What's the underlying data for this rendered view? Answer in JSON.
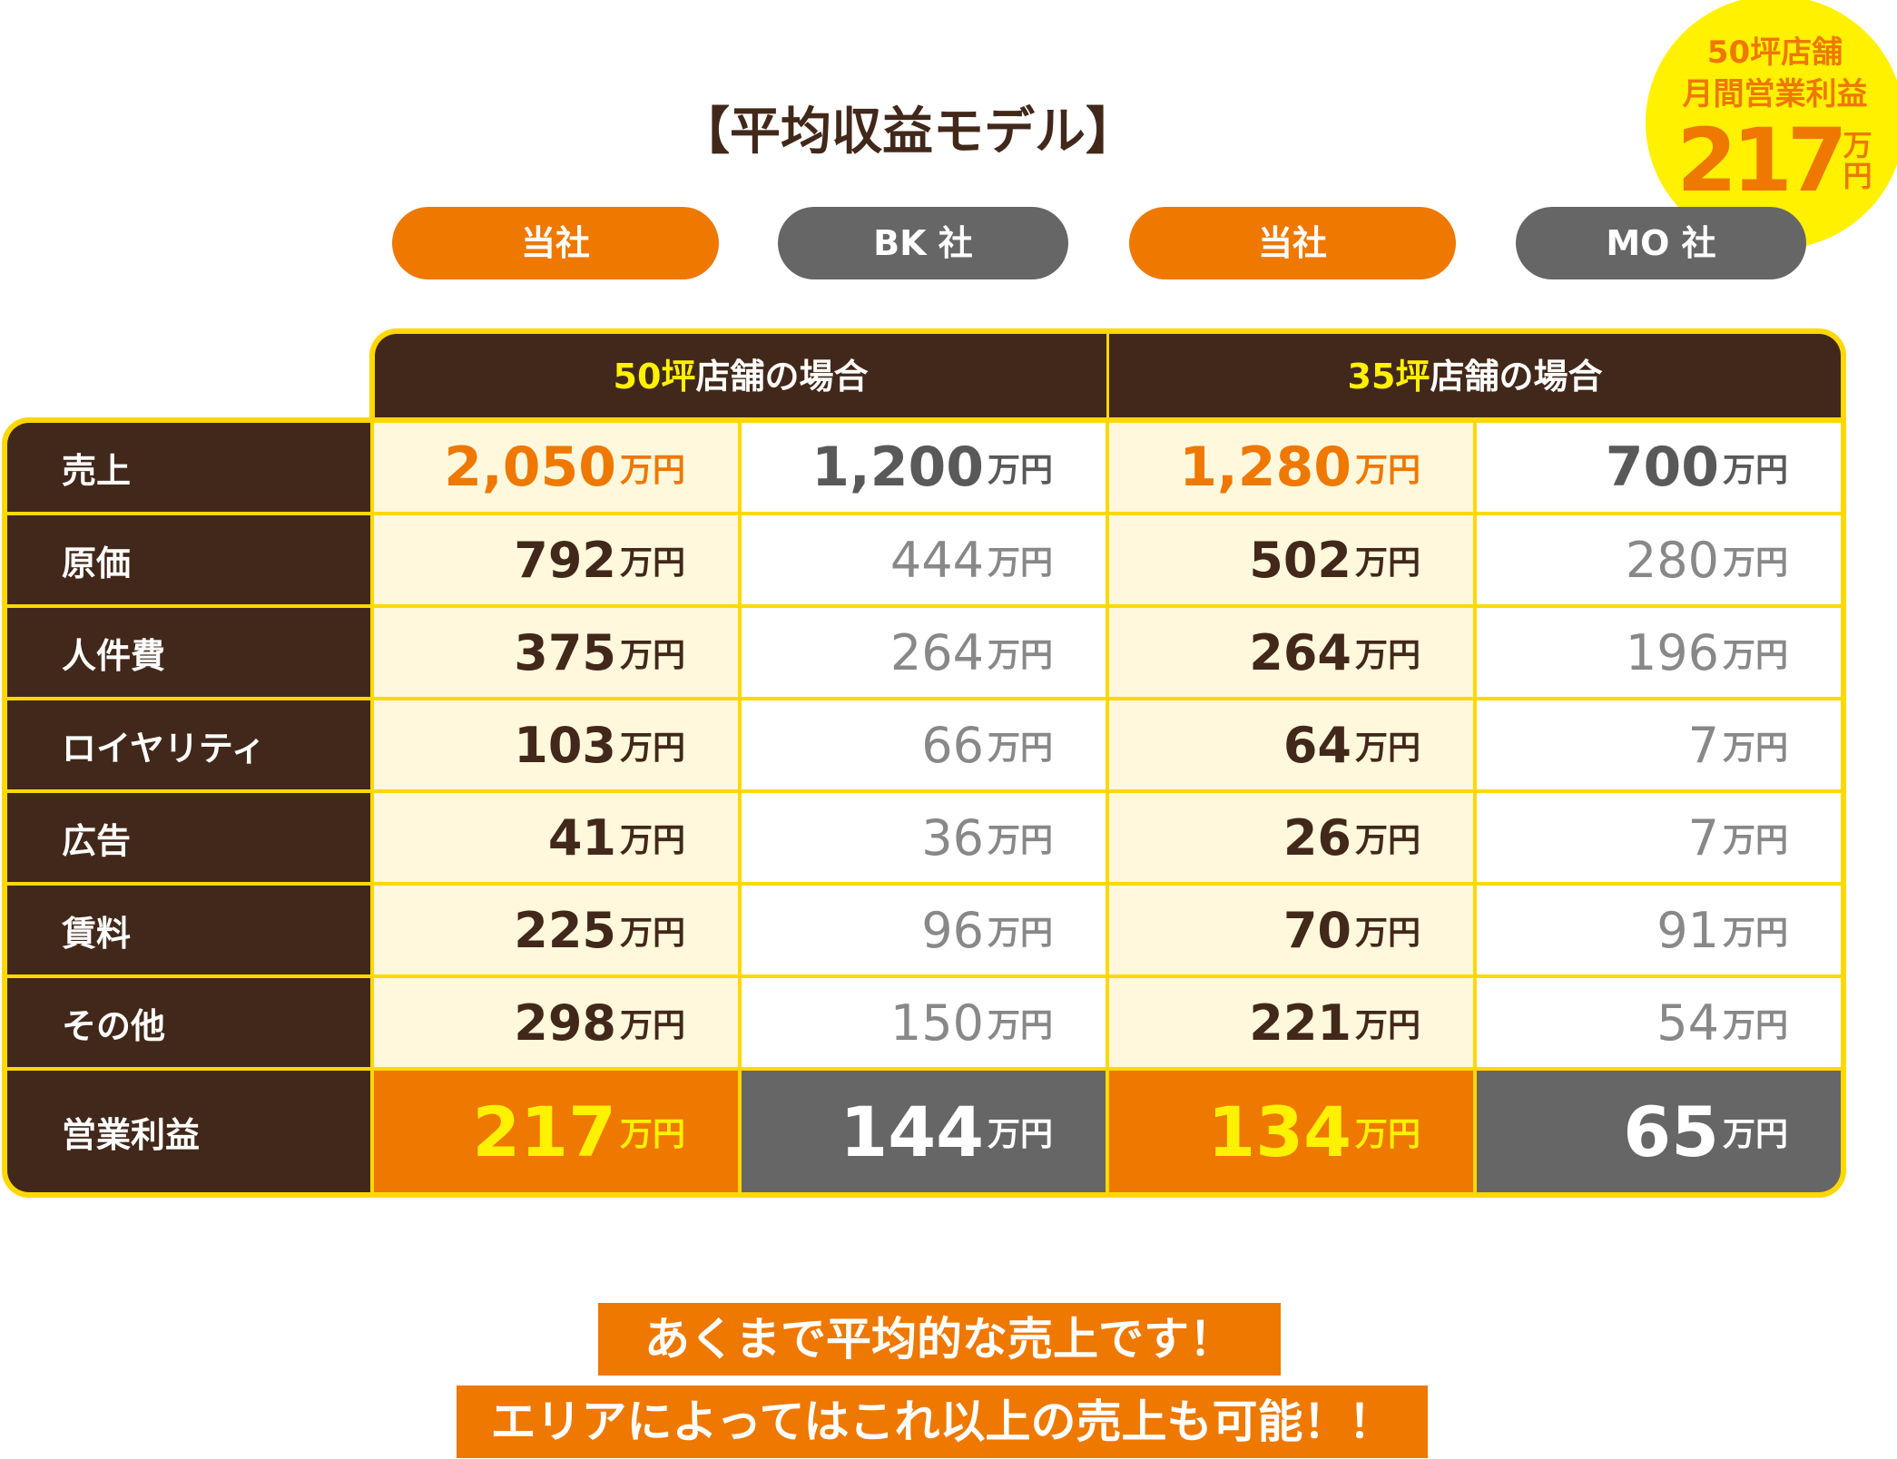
{
  "title": "【平均収益モデル】",
  "badge": {
    "line1": "50坪店舗",
    "line2": "月間営業利益",
    "value": "217",
    "unit": "万円",
    "color": "#fff100"
  },
  "bubbles": [
    {
      "label": "当社",
      "color": "#ee7800"
    },
    {
      "label": "BK 社",
      "color": "#666666"
    },
    {
      "label": "当社",
      "color": "#ee7800"
    },
    {
      "label": "MO 社",
      "color": "#666666"
    }
  ],
  "groups": [
    {
      "size": "50坪",
      "suffix": "店舗の場合"
    },
    {
      "size": "35坪",
      "suffix": "店舗の場合"
    }
  ],
  "unit": "万円",
  "rows": [
    {
      "label": "売上",
      "values": [
        "2,050",
        "1,200",
        "1,280",
        "700"
      ]
    },
    {
      "label": "原価",
      "values": [
        "792",
        "444",
        "502",
        "280"
      ]
    },
    {
      "label": "人件費",
      "values": [
        "375",
        "264",
        "264",
        "196"
      ]
    },
    {
      "label": "ロイヤリティ",
      "values": [
        "103",
        "66",
        "64",
        "7"
      ]
    },
    {
      "label": "広告",
      "values": [
        "41",
        "36",
        "26",
        "7"
      ]
    },
    {
      "label": "賃料",
      "values": [
        "225",
        "96",
        "70",
        "91"
      ]
    },
    {
      "label": "その他",
      "values": [
        "298",
        "150",
        "221",
        "54"
      ]
    },
    {
      "label": "営業利益",
      "values": [
        "217",
        "144",
        "134",
        "65"
      ]
    }
  ],
  "notes": [
    "あくまで平均的な売上です！",
    "エリアによってはこれ以上の売上も可能！！"
  ],
  "colors": {
    "brown": "#42281a",
    "orange": "#ee7800",
    "yellow": "#ffd800",
    "gray": "#666666"
  }
}
